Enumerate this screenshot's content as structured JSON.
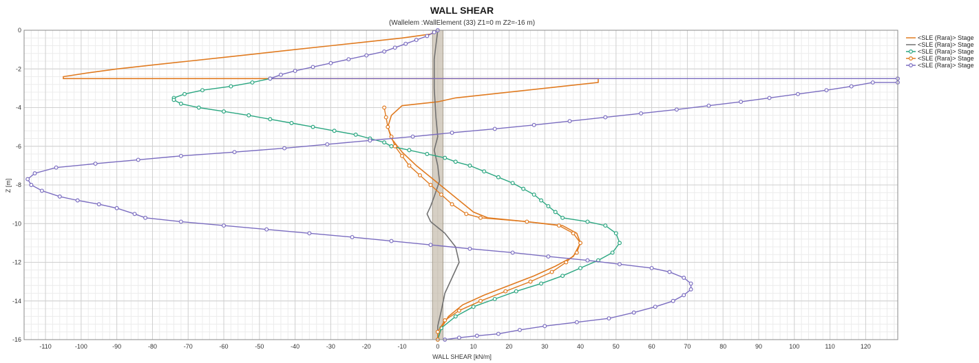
{
  "chart_data": {
    "type": "line",
    "title": "WALL SHEAR",
    "subtitle": "(Wallelem :WallElement (33) Z1=0 m Z2=-16 m)",
    "xlabel": "WALL SHEAR [kN/m]",
    "ylabel": "Z [m]",
    "xlim": [
      -116,
      129
    ],
    "ylim": [
      -16,
      0
    ],
    "xticks": [
      -110,
      -100,
      -90,
      -80,
      -70,
      -60,
      -50,
      -40,
      -30,
      -20,
      -10,
      0,
      10,
      20,
      30,
      40,
      50,
      60,
      70,
      80,
      90,
      100,
      110,
      120
    ],
    "yticks": [
      0,
      -2,
      -4,
      -6,
      -8,
      -10,
      -12,
      -14,
      -16
    ],
    "grid": true,
    "legend_position": "right",
    "band": {
      "x": [
        -1.5,
        1.5
      ],
      "color": "#c8bfb0"
    },
    "series": [
      {
        "name": "<SLE (Rara)> Stage",
        "color": "#e07a1f",
        "markers": false,
        "points": [
          [
            0,
            0
          ],
          [
            -2,
            -0.2
          ],
          [
            -10,
            -0.4
          ],
          [
            -20,
            -0.6
          ],
          [
            -30,
            -0.8
          ],
          [
            -40,
            -1.0
          ],
          [
            -50,
            -1.2
          ],
          [
            -60,
            -1.4
          ],
          [
            -70,
            -1.6
          ],
          [
            -80,
            -1.8
          ],
          [
            -90,
            -2.0
          ],
          [
            -98,
            -2.2
          ],
          [
            -105,
            -2.4
          ],
          [
            -105,
            -2.5
          ],
          [
            45,
            -2.5
          ],
          [
            45,
            -2.7
          ],
          [
            35,
            -2.9
          ],
          [
            25,
            -3.1
          ],
          [
            15,
            -3.3
          ],
          [
            5,
            -3.5
          ],
          [
            0,
            -3.7
          ],
          [
            -10,
            -3.9
          ],
          [
            -13,
            -4.4
          ],
          [
            -14,
            -5.0
          ],
          [
            -13,
            -5.6
          ],
          [
            -10,
            -6.3
          ],
          [
            -6,
            -7.0
          ],
          [
            -2,
            -7.6
          ],
          [
            2,
            -8.2
          ],
          [
            6,
            -8.8
          ],
          [
            10,
            -9.4
          ],
          [
            14,
            -9.7
          ],
          [
            25,
            -9.9
          ],
          [
            35,
            -10.1
          ],
          [
            39,
            -10.5
          ],
          [
            40,
            -11.0
          ],
          [
            38,
            -11.7
          ],
          [
            33,
            -12.2
          ],
          [
            27,
            -12.7
          ],
          [
            20,
            -13.2
          ],
          [
            13,
            -13.7
          ],
          [
            7,
            -14.2
          ],
          [
            3,
            -14.8
          ],
          [
            1,
            -15.4
          ],
          [
            0,
            -16.0
          ]
        ]
      },
      {
        "name": "<SLE (Rara)> Stage",
        "color": "#707070",
        "markers": false,
        "points": [
          [
            0,
            0
          ],
          [
            -1,
            -1.5
          ],
          [
            -1,
            -3.0
          ],
          [
            -0.5,
            -4.5
          ],
          [
            0,
            -5.5
          ],
          [
            -1,
            -6.2
          ],
          [
            0,
            -7.0
          ],
          [
            0.5,
            -7.8
          ],
          [
            -1,
            -8.6
          ],
          [
            -2,
            -9.1
          ],
          [
            -3,
            -9.5
          ],
          [
            -2,
            -9.9
          ],
          [
            2,
            -10.5
          ],
          [
            5,
            -11.2
          ],
          [
            6,
            -12.0
          ],
          [
            4,
            -12.8
          ],
          [
            2,
            -13.6
          ],
          [
            1,
            -14.5
          ],
          [
            0,
            -15.3
          ],
          [
            0,
            -16.0
          ]
        ]
      },
      {
        "name": "<SLE (Rara)> Stage",
        "color": "#2aa680",
        "markers": true,
        "points": [
          [
            -47,
            -2.5
          ],
          [
            -52,
            -2.7
          ],
          [
            -58,
            -2.9
          ],
          [
            -66,
            -3.1
          ],
          [
            -71,
            -3.3
          ],
          [
            -74,
            -3.5
          ],
          [
            -74,
            -3.6
          ],
          [
            -72,
            -3.8
          ],
          [
            -67,
            -4.0
          ],
          [
            -60,
            -4.2
          ],
          [
            -53,
            -4.4
          ],
          [
            -47,
            -4.6
          ],
          [
            -41,
            -4.8
          ],
          [
            -35,
            -5.0
          ],
          [
            -29,
            -5.2
          ],
          [
            -23,
            -5.4
          ],
          [
            -19,
            -5.6
          ],
          [
            -15,
            -5.8
          ],
          [
            -13,
            -6.0
          ],
          [
            -8,
            -6.2
          ],
          [
            -3,
            -6.4
          ],
          [
            2,
            -6.6
          ],
          [
            5,
            -6.8
          ],
          [
            9,
            -7.0
          ],
          [
            13,
            -7.3
          ],
          [
            17,
            -7.6
          ],
          [
            21,
            -7.9
          ],
          [
            24,
            -8.2
          ],
          [
            27,
            -8.5
          ],
          [
            29,
            -8.8
          ],
          [
            31,
            -9.1
          ],
          [
            33,
            -9.4
          ],
          [
            35,
            -9.7
          ],
          [
            42,
            -9.9
          ],
          [
            47,
            -10.1
          ],
          [
            50,
            -10.5
          ],
          [
            51,
            -11.0
          ],
          [
            49,
            -11.5
          ],
          [
            45,
            -11.9
          ],
          [
            40,
            -12.3
          ],
          [
            35,
            -12.7
          ],
          [
            29,
            -13.1
          ],
          [
            22,
            -13.5
          ],
          [
            16,
            -13.9
          ],
          [
            10,
            -14.3
          ],
          [
            5,
            -14.8
          ],
          [
            1,
            -15.4
          ],
          [
            0,
            -16.0
          ]
        ]
      },
      {
        "name": "<SLE (Rara)> Stage",
        "color": "#e07a1f",
        "markers": true,
        "points": [
          [
            -15,
            -4.0
          ],
          [
            -14.5,
            -4.5
          ],
          [
            -14,
            -5.0
          ],
          [
            -13,
            -5.5
          ],
          [
            -12,
            -6.0
          ],
          [
            -10,
            -6.5
          ],
          [
            -8,
            -7.0
          ],
          [
            -5,
            -7.5
          ],
          [
            -2,
            -8.0
          ],
          [
            1,
            -8.5
          ],
          [
            4,
            -9.0
          ],
          [
            8,
            -9.5
          ],
          [
            12,
            -9.7
          ],
          [
            25,
            -9.9
          ],
          [
            34,
            -10.1
          ],
          [
            38,
            -10.5
          ],
          [
            40,
            -11.0
          ],
          [
            39,
            -11.5
          ],
          [
            36,
            -12.0
          ],
          [
            32,
            -12.5
          ],
          [
            26,
            -13.0
          ],
          [
            19,
            -13.5
          ],
          [
            12,
            -14.0
          ],
          [
            6,
            -14.5
          ],
          [
            2,
            -15.0
          ],
          [
            0,
            -15.6
          ],
          [
            0,
            -16.0
          ]
        ]
      },
      {
        "name": "<SLE (Rara)> Stage",
        "color": "#7a6cc0",
        "markers": true,
        "points": [
          [
            0,
            0
          ],
          [
            -1,
            -0.1
          ],
          [
            -3,
            -0.3
          ],
          [
            -6,
            -0.5
          ],
          [
            -9,
            -0.7
          ],
          [
            -12,
            -0.9
          ],
          [
            -15,
            -1.1
          ],
          [
            -20,
            -1.3
          ],
          [
            -25,
            -1.5
          ],
          [
            -30,
            -1.7
          ],
          [
            -35,
            -1.9
          ],
          [
            -40,
            -2.1
          ],
          [
            -44,
            -2.3
          ],
          [
            -47,
            -2.5
          ],
          [
            129,
            -2.5
          ],
          [
            129,
            -2.7
          ],
          [
            122,
            -2.7
          ],
          [
            116,
            -2.9
          ],
          [
            109,
            -3.1
          ],
          [
            101,
            -3.3
          ],
          [
            93,
            -3.5
          ],
          [
            85,
            -3.7
          ],
          [
            76,
            -3.9
          ],
          [
            67,
            -4.1
          ],
          [
            57,
            -4.3
          ],
          [
            47,
            -4.5
          ],
          [
            37,
            -4.7
          ],
          [
            27,
            -4.9
          ],
          [
            16,
            -5.1
          ],
          [
            4,
            -5.3
          ],
          [
            -7,
            -5.5
          ],
          [
            -19,
            -5.7
          ],
          [
            -31,
            -5.9
          ],
          [
            -43,
            -6.1
          ],
          [
            -57,
            -6.3
          ],
          [
            -72,
            -6.5
          ],
          [
            -84,
            -6.7
          ],
          [
            -96,
            -6.9
          ],
          [
            -107,
            -7.1
          ],
          [
            -113,
            -7.4
          ],
          [
            -115,
            -7.7
          ],
          [
            -114,
            -8.0
          ],
          [
            -111,
            -8.3
          ],
          [
            -106,
            -8.6
          ],
          [
            -101,
            -8.8
          ],
          [
            -95,
            -9.0
          ],
          [
            -90,
            -9.2
          ],
          [
            -85,
            -9.5
          ],
          [
            -82,
            -9.7
          ],
          [
            -72,
            -9.9
          ],
          [
            -60,
            -10.1
          ],
          [
            -48,
            -10.3
          ],
          [
            -36,
            -10.5
          ],
          [
            -24,
            -10.7
          ],
          [
            -13,
            -10.9
          ],
          [
            -2,
            -11.1
          ],
          [
            9,
            -11.3
          ],
          [
            21,
            -11.5
          ],
          [
            31,
            -11.7
          ],
          [
            42,
            -11.9
          ],
          [
            51,
            -12.1
          ],
          [
            60,
            -12.3
          ],
          [
            65,
            -12.5
          ],
          [
            69,
            -12.8
          ],
          [
            71,
            -13.1
          ],
          [
            71,
            -13.4
          ],
          [
            69,
            -13.7
          ],
          [
            66,
            -14.0
          ],
          [
            61,
            -14.3
          ],
          [
            55,
            -14.6
          ],
          [
            48,
            -14.9
          ],
          [
            39,
            -15.1
          ],
          [
            30,
            -15.3
          ],
          [
            23,
            -15.5
          ],
          [
            17,
            -15.7
          ],
          [
            11,
            -15.8
          ],
          [
            6,
            -15.9
          ],
          [
            2,
            -16.0
          ]
        ]
      }
    ]
  }
}
